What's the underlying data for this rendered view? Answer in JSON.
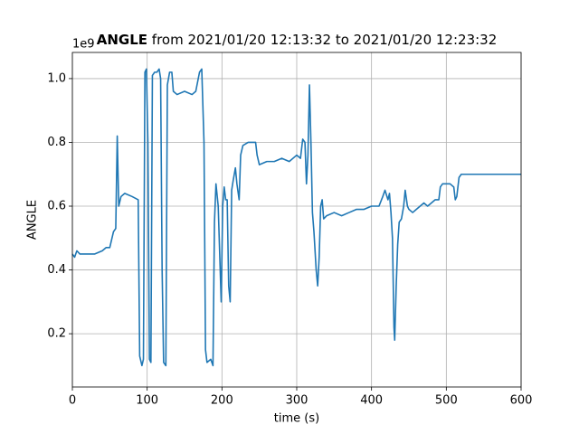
{
  "chart_data": {
    "type": "line",
    "title_bold": "ANGLE",
    "title_rest": "from 2021/01/20 12:13:32 to 2021/01/20 12:23:32",
    "x_label": "time (s)",
    "y_label": "ANGLE",
    "y_offset_label": "1e9",
    "xlim": [
      0,
      600
    ],
    "ylim": [
      0.033,
      1.082
    ],
    "xticks": [
      0,
      100,
      200,
      300,
      400,
      500,
      600
    ],
    "yticks": [
      0.2,
      0.4,
      0.6,
      0.8,
      {
        "value": 1,
        "label": "1.0"
      }
    ],
    "grid": true,
    "color": "#1f77b4",
    "x": [
      0,
      3,
      6,
      10,
      20,
      30,
      40,
      45,
      50,
      55,
      58,
      60,
      62,
      65,
      70,
      80,
      88,
      90,
      93,
      95,
      97,
      99,
      101,
      103,
      105,
      107,
      110,
      113,
      116,
      118,
      120,
      122,
      125,
      127,
      130,
      133,
      135,
      140,
      150,
      160,
      165,
      170,
      173,
      176,
      178,
      180,
      185,
      188,
      190,
      192,
      195,
      197,
      199,
      201,
      203,
      205,
      207,
      209,
      211,
      213,
      215,
      218,
      220,
      223,
      225,
      228,
      235,
      245,
      247,
      250,
      260,
      270,
      280,
      290,
      300,
      305,
      308,
      311,
      313,
      315,
      317,
      319,
      321,
      323,
      326,
      328,
      330,
      332,
      334,
      336,
      340,
      350,
      360,
      370,
      380,
      390,
      400,
      410,
      415,
      418,
      422,
      424,
      426,
      428,
      430,
      431,
      433,
      435,
      437,
      440,
      443,
      445,
      448,
      450,
      455,
      460,
      465,
      470,
      475,
      480,
      485,
      490,
      492,
      495,
      500,
      505,
      510,
      512,
      514,
      517,
      520,
      530,
      540,
      550,
      560,
      570,
      600
    ],
    "values": [
      0.45,
      0.44,
      0.46,
      0.45,
      0.45,
      0.45,
      0.46,
      0.47,
      0.47,
      0.52,
      0.53,
      0.82,
      0.6,
      0.63,
      0.64,
      0.63,
      0.62,
      0.13,
      0.1,
      0.12,
      1.02,
      1.03,
      0.8,
      0.12,
      0.11,
      1.01,
      1.02,
      1.02,
      1.03,
      1,
      0.4,
      0.11,
      0.1,
      0.98,
      1.02,
      1.02,
      0.96,
      0.95,
      0.96,
      0.95,
      0.96,
      1.02,
      1.03,
      0.8,
      0.15,
      0.11,
      0.12,
      0.1,
      0.55,
      0.67,
      0.6,
      0.45,
      0.3,
      0.6,
      0.66,
      0.62,
      0.62,
      0.35,
      0.3,
      0.65,
      0.68,
      0.72,
      0.67,
      0.62,
      0.76,
      0.79,
      0.8,
      0.8,
      0.76,
      0.73,
      0.74,
      0.74,
      0.75,
      0.74,
      0.76,
      0.75,
      0.81,
      0.8,
      0.67,
      0.76,
      0.98,
      0.8,
      0.58,
      0.52,
      0.4,
      0.35,
      0.44,
      0.6,
      0.62,
      0.56,
      0.57,
      0.58,
      0.57,
      0.58,
      0.59,
      0.59,
      0.6,
      0.6,
      0.63,
      0.65,
      0.62,
      0.64,
      0.58,
      0.5,
      0.22,
      0.18,
      0.35,
      0.48,
      0.55,
      0.56,
      0.6,
      0.65,
      0.6,
      0.59,
      0.58,
      0.59,
      0.6,
      0.61,
      0.6,
      0.61,
      0.62,
      0.62,
      0.66,
      0.67,
      0.67,
      0.67,
      0.66,
      0.62,
      0.63,
      0.69,
      0.7,
      0.7,
      0.7,
      0.7,
      0.7,
      0.7,
      0.7
    ]
  }
}
